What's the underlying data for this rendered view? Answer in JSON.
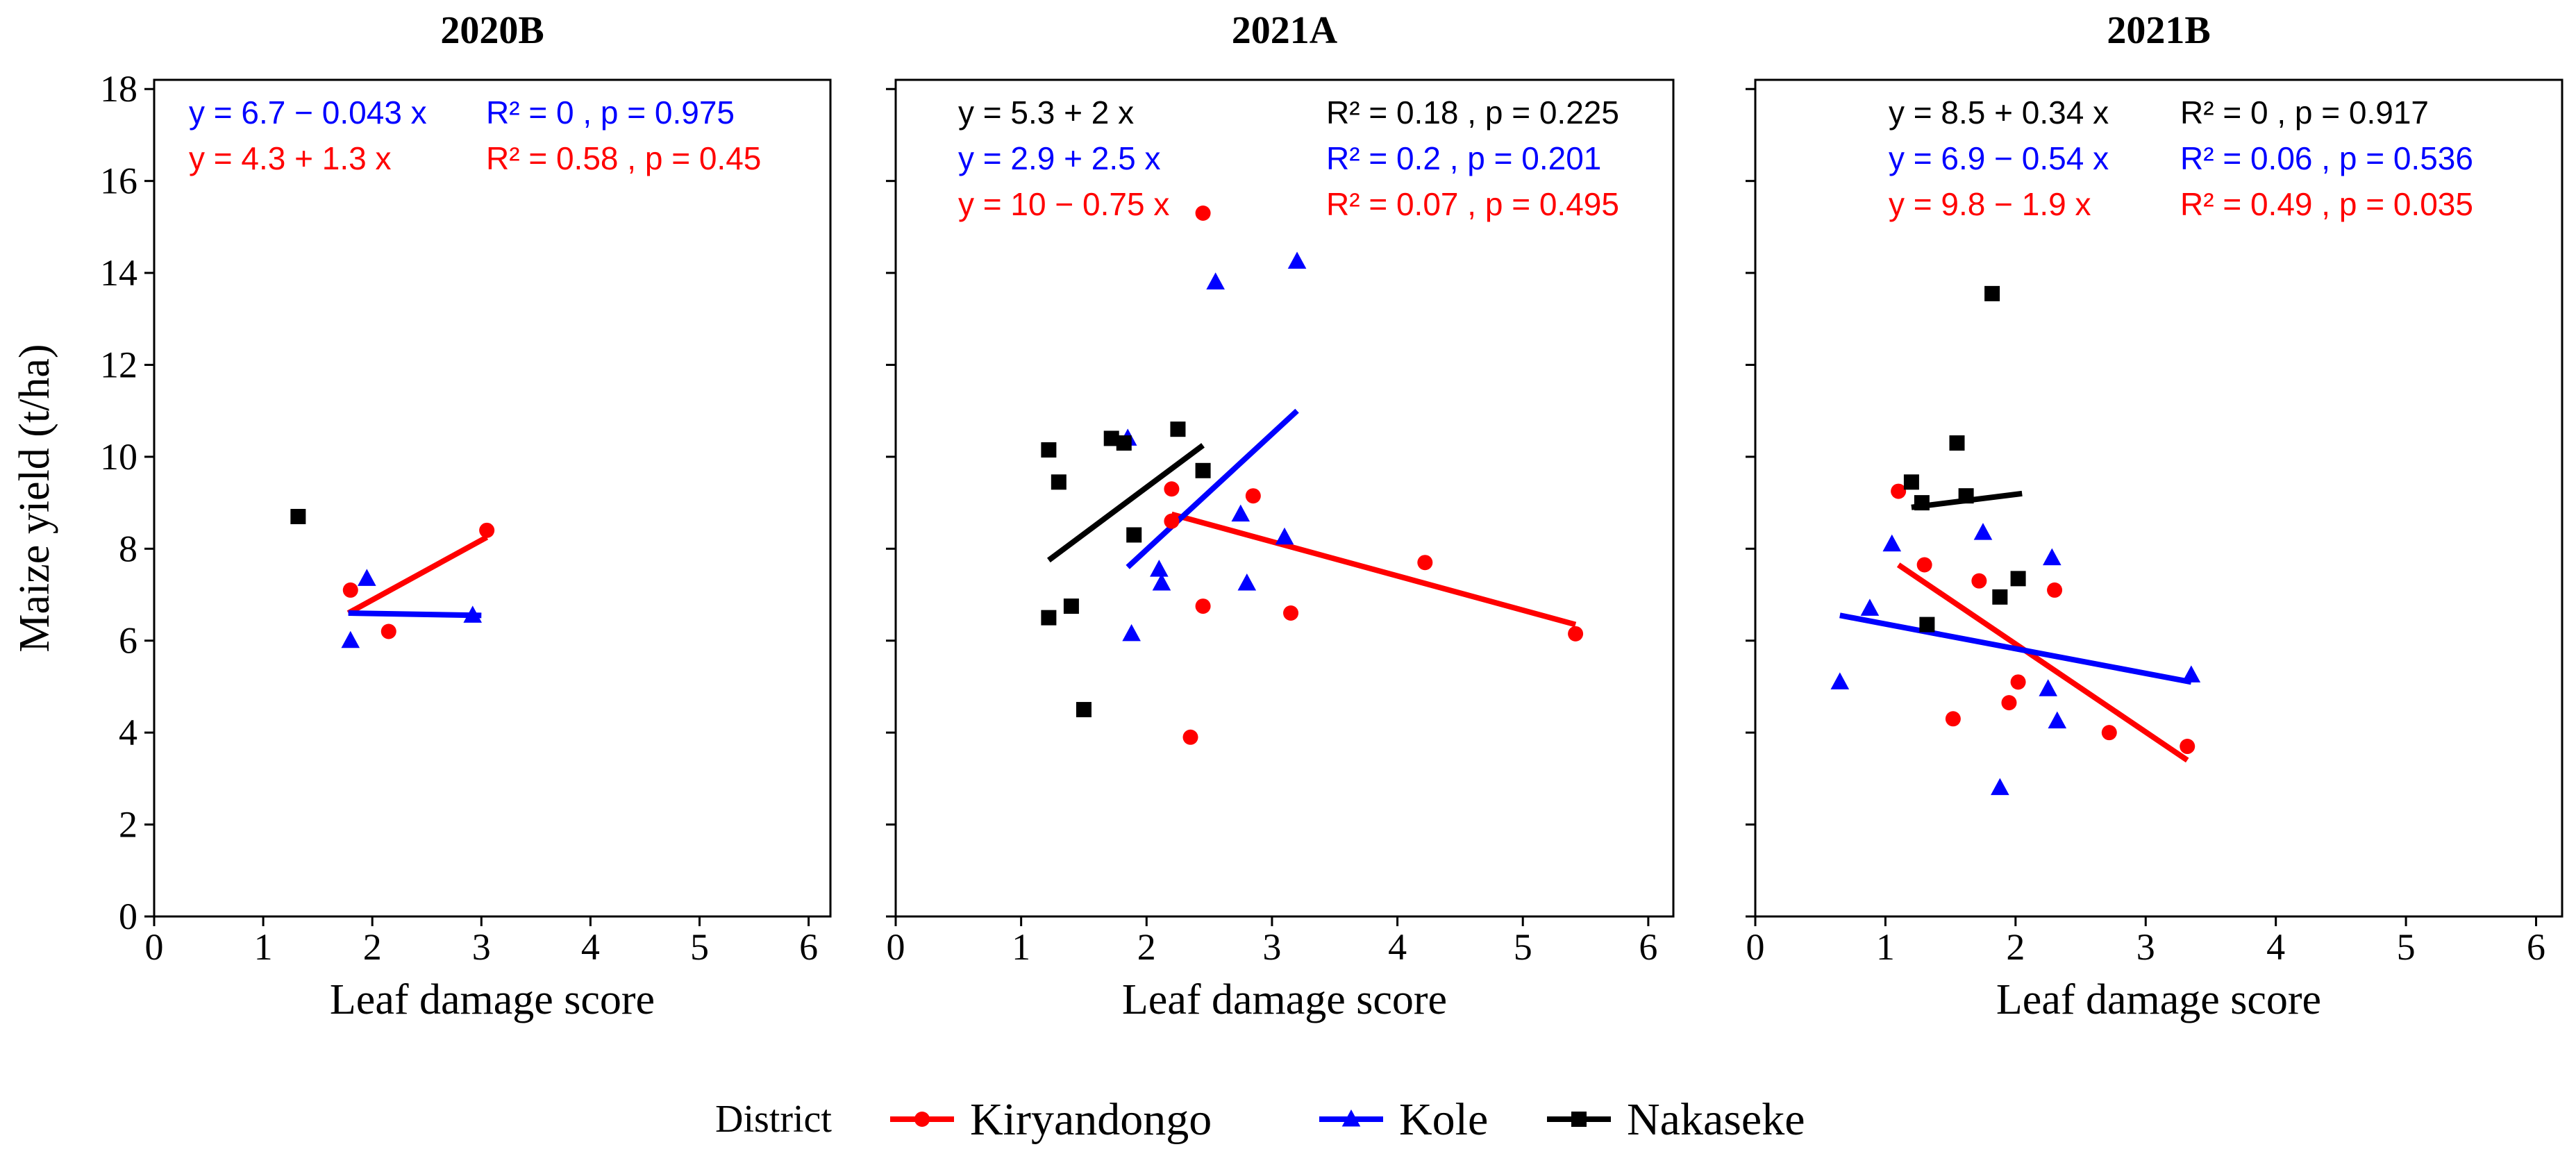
{
  "chart_data": [
    {
      "type": "scatter",
      "title": "2020B",
      "xlabel": "Leaf damage score",
      "ylabel": "Maize yield (t/ha)",
      "xlim": [
        0,
        6.2
      ],
      "ylim": [
        0,
        18.2
      ],
      "xticks": [
        0,
        1,
        2,
        3,
        4,
        5,
        6
      ],
      "yticks": [
        0,
        2,
        4,
        6,
        8,
        10,
        12,
        14,
        16,
        18
      ],
      "series": [
        {
          "name": "Kiryandongo",
          "points": [
            [
              1.8,
              7.1
            ],
            [
              2.15,
              6.2
            ],
            [
              3.05,
              8.4
            ]
          ]
        },
        {
          "name": "Kole",
          "points": [
            [
              1.8,
              6.0
            ],
            [
              1.95,
              7.35
            ],
            [
              2.92,
              6.55
            ]
          ]
        },
        {
          "name": "Nakaseke",
          "points": [
            [
              1.32,
              8.7
            ]
          ]
        }
      ],
      "fits": [
        {
          "series": "Kiryandongo",
          "x": [
            1.78,
            3.05
          ],
          "y": [
            6.6,
            8.25
          ]
        },
        {
          "series": "Kole",
          "x": [
            1.78,
            3.0
          ],
          "y": [
            6.6,
            6.55
          ]
        }
      ],
      "annotations": [
        {
          "series": "Kole",
          "equation": "y = 6.7 − 0.043 x",
          "r2": "R² = 0 , p = 0.975"
        },
        {
          "series": "Kiryandongo",
          "equation": "y = 4.3 + 1.3 x",
          "r2": "R² = 0.58 , p = 0.45"
        }
      ]
    },
    {
      "type": "scatter",
      "title": "2021A",
      "xlabel": "Leaf damage score",
      "ylabel": "",
      "xlim": [
        0,
        6.2
      ],
      "ylim": [
        0,
        18.2
      ],
      "xticks": [
        0,
        1,
        2,
        3,
        4,
        5,
        6
      ],
      "yticks": [
        0,
        2,
        4,
        6,
        8,
        10,
        12,
        14,
        16,
        18
      ],
      "series": [
        {
          "name": "Kiryandongo",
          "points": [
            [
              2.2,
              9.3
            ],
            [
              2.2,
              8.6
            ],
            [
              2.45,
              6.75
            ],
            [
              2.45,
              15.3
            ],
            [
              2.35,
              3.9
            ],
            [
              2.85,
              9.15
            ],
            [
              3.15,
              6.6
            ],
            [
              4.22,
              7.7
            ],
            [
              5.42,
              6.15
            ]
          ]
        },
        {
          "name": "Kole",
          "points": [
            [
              1.85,
              10.4
            ],
            [
              1.88,
              6.15
            ],
            [
              2.1,
              7.55
            ],
            [
              2.12,
              7.25
            ],
            [
              2.55,
              13.8
            ],
            [
              2.75,
              8.75
            ],
            [
              2.8,
              7.25
            ],
            [
              3.1,
              8.25
            ],
            [
              3.2,
              14.25
            ]
          ]
        },
        {
          "name": "Nakaseke",
          "points": [
            [
              1.22,
              10.15
            ],
            [
              1.22,
              6.5
            ],
            [
              1.3,
              9.45
            ],
            [
              1.4,
              6.75
            ],
            [
              1.5,
              4.5
            ],
            [
              1.72,
              10.4
            ],
            [
              1.82,
              10.3
            ],
            [
              1.9,
              8.3
            ],
            [
              2.25,
              10.6
            ],
            [
              2.45,
              9.7
            ]
          ]
        }
      ],
      "fits": [
        {
          "series": "Kiryandongo",
          "x": [
            2.2,
            5.42
          ],
          "y": [
            8.75,
            6.35
          ]
        },
        {
          "series": "Kole",
          "x": [
            1.85,
            3.2
          ],
          "y": [
            7.6,
            11.0
          ]
        },
        {
          "series": "Nakaseke",
          "x": [
            1.22,
            2.45
          ],
          "y": [
            7.75,
            10.25
          ]
        }
      ],
      "annotations": [
        {
          "series": "Nakaseke",
          "equation": "y = 5.3 + 2 x",
          "r2": "R² = 0.18 , p = 0.225"
        },
        {
          "series": "Kole",
          "equation": "y = 2.9 + 2.5 x",
          "r2": "R² = 0.2 , p = 0.201"
        },
        {
          "series": "Kiryandongo",
          "equation": "y = 10 − 0.75 x",
          "r2": "R² = 0.07 , p = 0.495"
        }
      ]
    },
    {
      "type": "scatter",
      "title": "2021B",
      "xlabel": "Leaf damage score",
      "ylabel": "",
      "xlim": [
        0,
        6.2
      ],
      "ylim": [
        0,
        18.2
      ],
      "xticks": [
        0,
        1,
        2,
        3,
        4,
        5,
        6
      ],
      "yticks": [
        0,
        2,
        4,
        6,
        8,
        10,
        12,
        14,
        16,
        18
      ],
      "series": [
        {
          "name": "Kiryandongo",
          "points": [
            [
              1.1,
              9.25
            ],
            [
              1.3,
              7.65
            ],
            [
              1.52,
              4.3
            ],
            [
              1.72,
              7.3
            ],
            [
              1.95,
              4.65
            ],
            [
              2.02,
              5.1
            ],
            [
              2.3,
              7.1
            ],
            [
              2.72,
              4.0
            ],
            [
              3.32,
              3.7
            ]
          ]
        },
        {
          "name": "Kole",
          "points": [
            [
              0.65,
              5.1
            ],
            [
              0.88,
              6.7
            ],
            [
              1.05,
              8.1
            ],
            [
              1.75,
              8.35
            ],
            [
              1.88,
              2.8
            ],
            [
              2.25,
              4.95
            ],
            [
              2.28,
              7.8
            ],
            [
              2.32,
              4.25
            ],
            [
              3.35,
              5.25
            ]
          ]
        },
        {
          "name": "Nakaseke",
          "points": [
            [
              1.2,
              9.45
            ],
            [
              1.28,
              9.0
            ],
            [
              1.32,
              6.35
            ],
            [
              1.82,
              13.55
            ],
            [
              1.55,
              10.3
            ],
            [
              1.62,
              9.15
            ],
            [
              1.88,
              6.95
            ],
            [
              2.02,
              7.35
            ]
          ]
        }
      ],
      "fits": [
        {
          "series": "Kiryandongo",
          "x": [
            1.1,
            3.32
          ],
          "y": [
            7.65,
            3.4
          ]
        },
        {
          "series": "Kole",
          "x": [
            0.65,
            3.35
          ],
          "y": [
            6.55,
            5.1
          ]
        },
        {
          "series": "Nakaseke",
          "x": [
            1.2,
            2.05
          ],
          "y": [
            8.9,
            9.2
          ]
        }
      ],
      "annotations": [
        {
          "series": "Nakaseke",
          "equation": "y = 8.5 + 0.34 x",
          "r2": "R² = 0 , p = 0.917"
        },
        {
          "series": "Kole",
          "equation": "y = 6.9 − 0.54 x",
          "r2": "R² = 0.06 , p = 0.536"
        },
        {
          "series": "Kiryandongo",
          "equation": "y = 9.8 − 1.9 x",
          "r2": "R² = 0.49 , p = 0.035"
        }
      ]
    }
  ],
  "legend": {
    "title": "District",
    "items": [
      {
        "name": "Kiryandongo",
        "color": "#ff0000",
        "marker": "circle"
      },
      {
        "name": "Kole",
        "color": "#0000ff",
        "marker": "triangle"
      },
      {
        "name": "Nakaseke",
        "color": "#000000",
        "marker": "square"
      }
    ]
  }
}
